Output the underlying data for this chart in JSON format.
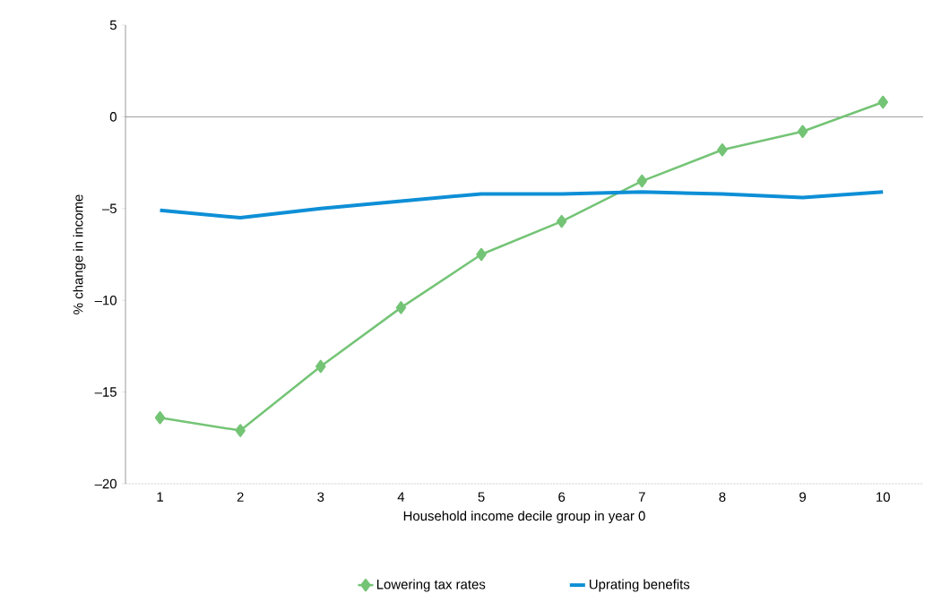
{
  "chart_data": {
    "type": "line",
    "xlabel": "Household income decile group in year 0",
    "ylabel": "% change in income",
    "categories": [
      "1",
      "2",
      "3",
      "4",
      "5",
      "6",
      "7",
      "8",
      "9",
      "10"
    ],
    "series": [
      {
        "name": "Lowering tax rates",
        "color": "#74c476",
        "marker": "diamond",
        "values": [
          -16.4,
          -17.1,
          -13.6,
          -10.4,
          -7.5,
          -5.7,
          -3.5,
          -1.8,
          -0.8,
          0.8
        ]
      },
      {
        "name": "Uprating benefits",
        "color": "#0e8fd6",
        "marker": "none",
        "values": [
          -5.1,
          -5.5,
          -5.0,
          -4.6,
          -4.2,
          -4.2,
          -4.1,
          -4.2,
          -4.4,
          -4.1
        ]
      }
    ],
    "ylim": [
      -20,
      5
    ],
    "yticks": [
      {
        "value": -20,
        "label": "–20"
      },
      {
        "value": -15,
        "label": "–15"
      },
      {
        "value": -10,
        "label": "–10"
      },
      {
        "value": -5,
        "label": "–5"
      },
      0,
      5
    ],
    "ref_lines": [
      {
        "axis": "y",
        "value": 0
      }
    ],
    "grid": false,
    "legend": "bottom"
  }
}
